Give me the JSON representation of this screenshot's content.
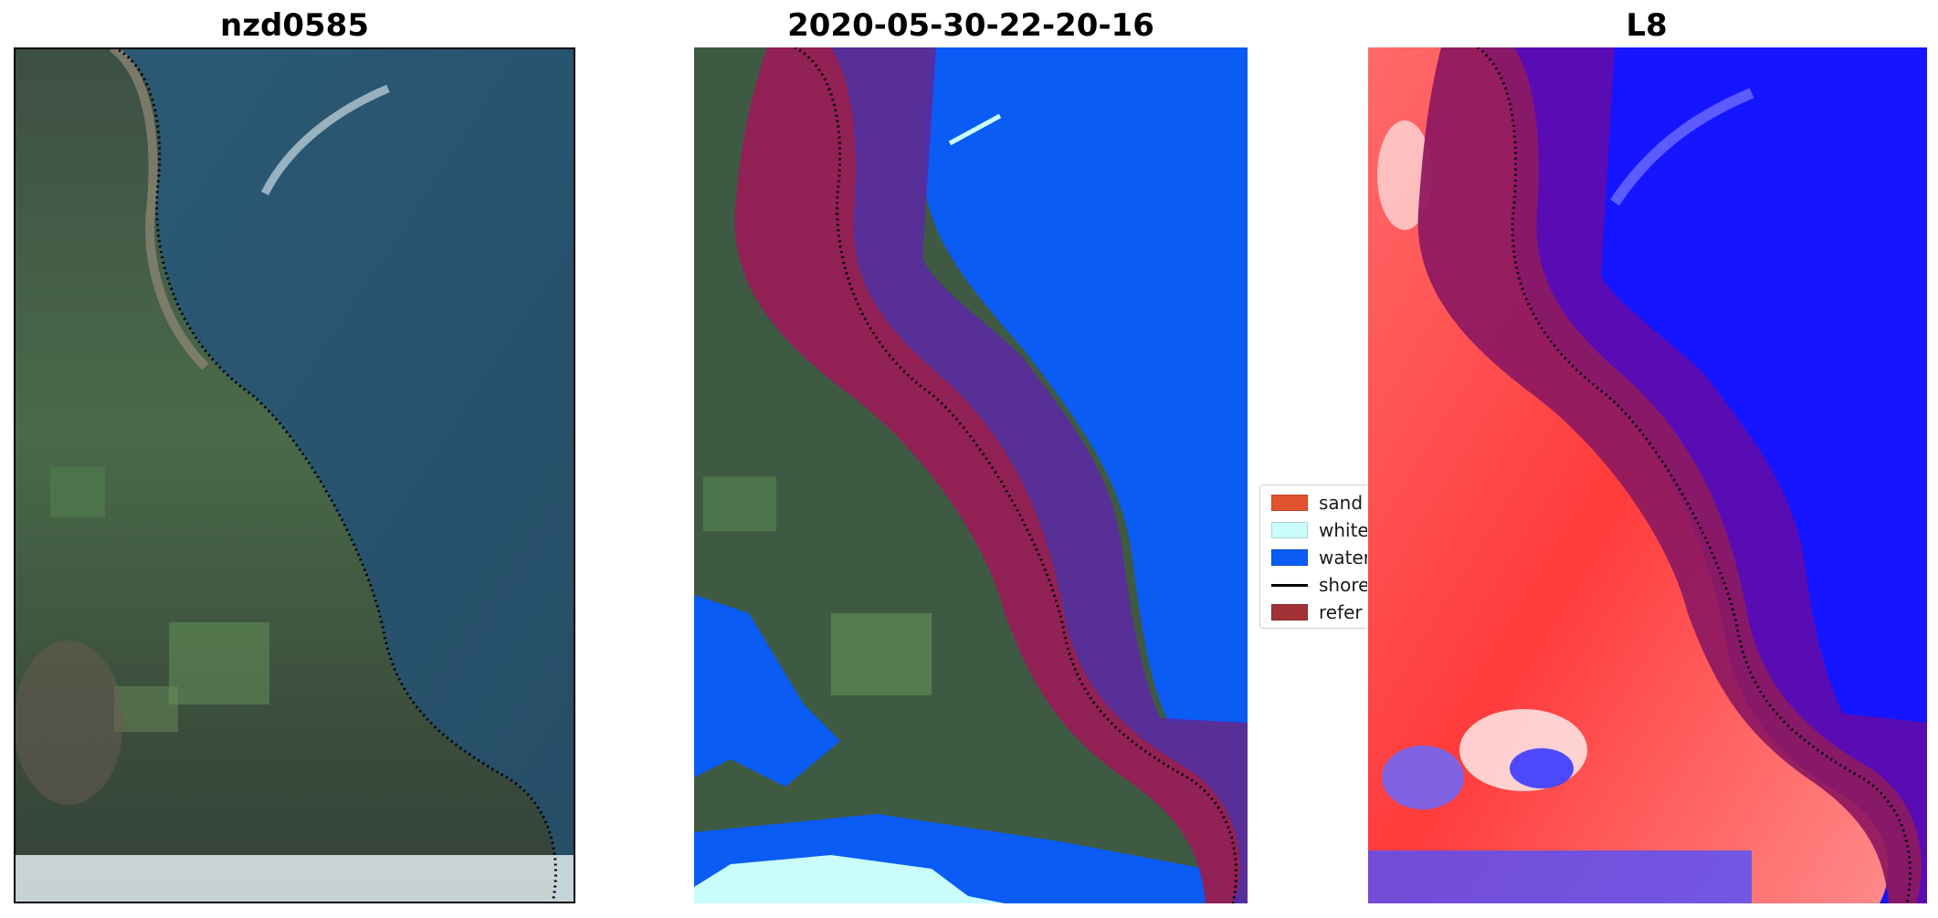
{
  "panels": {
    "left_title": "nzd0585",
    "middle_title": "2020-05-30-22-20-16",
    "right_title": "L8"
  },
  "legend": {
    "items": [
      {
        "label": "sand",
        "color": "#e1532f",
        "kind": "patch"
      },
      {
        "label": "white",
        "color": "#c9fdfb",
        "kind": "patch"
      },
      {
        "label": "water",
        "color": "#0a5cf5",
        "kind": "patch"
      },
      {
        "label": "shore",
        "color": "#000000",
        "kind": "line"
      },
      {
        "label": "refer",
        "color": "#a23236",
        "kind": "patch"
      }
    ]
  },
  "colors": {
    "water_class": "#0a5cf5",
    "whitewater_class": "#c9fdfb",
    "reference_band": "#9c1f4a",
    "landward_band": "#5a2aa0",
    "ocean_rgb": "#2a5670",
    "land_rgb": "#3f5a43",
    "index_positive": "#ff2020",
    "index_negative": "#1515ff"
  }
}
